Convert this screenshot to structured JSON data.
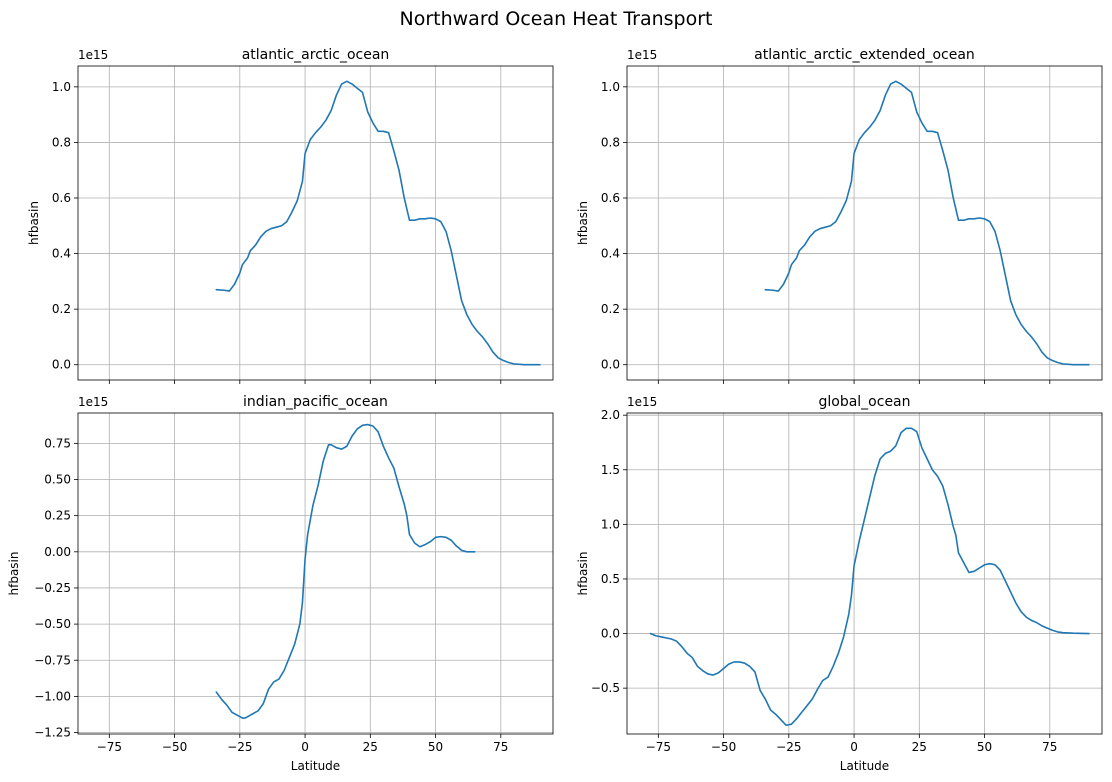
{
  "figure": {
    "title": "Northward Ocean Heat Transport"
  },
  "colors": {
    "series": "#1f77b4",
    "grid": "#b0b0b0",
    "axis": "#000000"
  },
  "chart_data": [
    {
      "type": "line",
      "title": "atlantic_arctic_ocean",
      "xlabel": "",
      "ylabel": "hfbasin",
      "offset_label": "1e15",
      "grid": true,
      "xlim": [
        -87,
        95
      ],
      "ylim": [
        -0.055,
        1.075
      ],
      "xticks": [
        -75,
        -50,
        -25,
        0,
        25,
        50,
        75
      ],
      "xticklabels": [
        "",
        "",
        "",
        "",
        "",
        "",
        ""
      ],
      "yticks": [
        0.0,
        0.2,
        0.4,
        0.6,
        0.8,
        1.0
      ],
      "yticklabels": [
        "0.0",
        "0.2",
        "0.4",
        "0.6",
        "0.8",
        "1.0"
      ],
      "series": [
        {
          "x": [
            -34,
            -31,
            -29,
            -27,
            -25,
            -24,
            -22,
            -21,
            -19,
            -17,
            -15,
            -13,
            -11,
            -9,
            -7,
            -5,
            -3,
            -1,
            0,
            2,
            4,
            6,
            8,
            10,
            12,
            14,
            16,
            18,
            20,
            22,
            24,
            26,
            28,
            30,
            32,
            34,
            36,
            38,
            39,
            40,
            42,
            44,
            46,
            48,
            50,
            52,
            54,
            56,
            58,
            60,
            62,
            64,
            66,
            68,
            70,
            72,
            74,
            76,
            78,
            80,
            84,
            90
          ],
          "y": [
            0.27,
            0.268,
            0.265,
            0.29,
            0.33,
            0.36,
            0.385,
            0.41,
            0.43,
            0.46,
            0.48,
            0.49,
            0.495,
            0.5,
            0.515,
            0.55,
            0.59,
            0.66,
            0.76,
            0.81,
            0.835,
            0.855,
            0.88,
            0.915,
            0.97,
            1.01,
            1.02,
            1.01,
            0.995,
            0.98,
            0.91,
            0.87,
            0.84,
            0.84,
            0.835,
            0.77,
            0.7,
            0.6,
            0.56,
            0.52,
            0.52,
            0.525,
            0.525,
            0.528,
            0.525,
            0.515,
            0.48,
            0.41,
            0.32,
            0.23,
            0.18,
            0.145,
            0.12,
            0.1,
            0.075,
            0.045,
            0.025,
            0.015,
            0.008,
            0.003,
            0.0,
            0.0
          ]
        }
      ]
    },
    {
      "type": "line",
      "title": "atlantic_arctic_extended_ocean",
      "xlabel": "",
      "ylabel": "hfbasin",
      "offset_label": "1e15",
      "grid": true,
      "xlim": [
        -87,
        95
      ],
      "ylim": [
        -0.055,
        1.075
      ],
      "xticks": [
        -75,
        -50,
        -25,
        0,
        25,
        50,
        75
      ],
      "xticklabels": [
        "",
        "",
        "",
        "",
        "",
        "",
        ""
      ],
      "yticks": [
        0.0,
        0.2,
        0.4,
        0.6,
        0.8,
        1.0
      ],
      "yticklabels": [
        "0.0",
        "0.2",
        "0.4",
        "0.6",
        "0.8",
        "1.0"
      ],
      "series": [
        {
          "x": [
            -34,
            -31,
            -29,
            -27,
            -25,
            -24,
            -22,
            -21,
            -19,
            -17,
            -15,
            -13,
            -11,
            -9,
            -7,
            -5,
            -3,
            -1,
            0,
            2,
            4,
            6,
            8,
            10,
            12,
            14,
            16,
            18,
            20,
            22,
            24,
            26,
            28,
            30,
            32,
            34,
            36,
            38,
            39,
            40,
            42,
            44,
            46,
            48,
            50,
            52,
            54,
            56,
            58,
            60,
            62,
            64,
            66,
            68,
            70,
            72,
            74,
            76,
            78,
            80,
            84,
            90
          ],
          "y": [
            0.27,
            0.268,
            0.265,
            0.29,
            0.33,
            0.36,
            0.385,
            0.41,
            0.43,
            0.46,
            0.48,
            0.49,
            0.495,
            0.5,
            0.515,
            0.55,
            0.59,
            0.66,
            0.76,
            0.81,
            0.835,
            0.855,
            0.88,
            0.915,
            0.97,
            1.01,
            1.02,
            1.01,
            0.995,
            0.98,
            0.91,
            0.87,
            0.84,
            0.84,
            0.835,
            0.77,
            0.7,
            0.6,
            0.56,
            0.52,
            0.52,
            0.525,
            0.525,
            0.528,
            0.525,
            0.515,
            0.48,
            0.41,
            0.32,
            0.23,
            0.18,
            0.145,
            0.12,
            0.1,
            0.075,
            0.045,
            0.025,
            0.015,
            0.008,
            0.003,
            0.0,
            0.0
          ]
        }
      ]
    },
    {
      "type": "line",
      "title": "indian_pacific_ocean",
      "xlabel": "Latitude",
      "ylabel": "hfbasin",
      "offset_label": "1e15",
      "grid": true,
      "xlim": [
        -87,
        95
      ],
      "ylim": [
        -1.26,
        0.96
      ],
      "xticks": [
        -75,
        -50,
        -25,
        0,
        25,
        50,
        75
      ],
      "xticklabels": [
        "−75",
        "−50",
        "−25",
        "0",
        "25",
        "50",
        "75"
      ],
      "yticks": [
        -1.25,
        -1.0,
        -0.75,
        -0.5,
        -0.25,
        0.0,
        0.25,
        0.5,
        0.75
      ],
      "yticklabels": [
        "−1.25",
        "−1.00",
        "−0.75",
        "−0.50",
        "−0.25",
        "0.00",
        "0.25",
        "0.50",
        "0.75"
      ],
      "series": [
        {
          "x": [
            -34,
            -32,
            -30,
            -28,
            -26,
            -24,
            -23,
            -22,
            -20,
            -18,
            -16,
            -14,
            -12,
            -10,
            -8,
            -6,
            -4,
            -2,
            -1,
            0,
            1,
            3,
            5,
            7,
            9,
            10,
            12,
            14,
            16,
            18,
            20,
            22,
            24,
            26,
            28,
            30,
            32,
            34,
            36,
            38,
            39,
            40,
            42,
            44,
            46,
            48,
            50,
            52,
            54,
            56,
            58,
            60,
            62,
            65
          ],
          "y": [
            -0.97,
            -1.02,
            -1.06,
            -1.11,
            -1.13,
            -1.15,
            -1.15,
            -1.14,
            -1.12,
            -1.1,
            -1.05,
            -0.95,
            -0.9,
            -0.88,
            -0.82,
            -0.73,
            -0.64,
            -0.5,
            -0.35,
            -0.05,
            0.12,
            0.32,
            0.46,
            0.63,
            0.74,
            0.74,
            0.72,
            0.71,
            0.73,
            0.8,
            0.85,
            0.875,
            0.88,
            0.87,
            0.83,
            0.73,
            0.65,
            0.58,
            0.45,
            0.33,
            0.25,
            0.12,
            0.06,
            0.035,
            0.05,
            0.07,
            0.1,
            0.105,
            0.1,
            0.08,
            0.04,
            0.01,
            0.0,
            0.0
          ]
        }
      ]
    },
    {
      "type": "line",
      "title": "global_ocean",
      "xlabel": "Latitude",
      "ylabel": "hfbasin",
      "offset_label": "1e15",
      "grid": true,
      "xlim": [
        -87,
        95
      ],
      "ylim": [
        -0.92,
        2.02
      ],
      "xticks": [
        -75,
        -50,
        -25,
        0,
        25,
        50,
        75
      ],
      "xticklabels": [
        "−75",
        "−50",
        "−25",
        "0",
        "25",
        "50",
        "75"
      ],
      "yticks": [
        -0.5,
        0.0,
        0.5,
        1.0,
        1.5,
        2.0
      ],
      "yticklabels": [
        "−0.5",
        "0.0",
        "0.5",
        "1.0",
        "1.5",
        "2.0"
      ],
      "series": [
        {
          "x": [
            -78,
            -76,
            -74,
            -70,
            -68,
            -66,
            -64,
            -62,
            -60,
            -58,
            -56,
            -54,
            -52,
            -50,
            -48,
            -46,
            -44,
            -42,
            -40,
            -38,
            -36,
            -34,
            -32,
            -30,
            -28,
            -26,
            -24,
            -22,
            -20,
            -18,
            -16,
            -14,
            -12,
            -10,
            -8,
            -6,
            -4,
            -2,
            -1,
            0,
            2,
            4,
            6,
            8,
            10,
            12,
            14,
            16,
            18,
            20,
            22,
            24,
            26,
            28,
            30,
            32,
            34,
            36,
            38,
            39,
            40,
            42,
            44,
            46,
            48,
            50,
            52,
            54,
            56,
            58,
            60,
            62,
            64,
            66,
            68,
            70,
            72,
            74,
            76,
            78,
            80,
            84,
            90
          ],
          "y": [
            0.0,
            -0.02,
            -0.03,
            -0.05,
            -0.07,
            -0.12,
            -0.18,
            -0.22,
            -0.3,
            -0.34,
            -0.37,
            -0.38,
            -0.36,
            -0.32,
            -0.28,
            -0.26,
            -0.26,
            -0.27,
            -0.3,
            -0.35,
            -0.52,
            -0.6,
            -0.7,
            -0.74,
            -0.79,
            -0.84,
            -0.83,
            -0.78,
            -0.72,
            -0.66,
            -0.6,
            -0.51,
            -0.43,
            -0.4,
            -0.3,
            -0.18,
            -0.03,
            0.18,
            0.35,
            0.62,
            0.85,
            1.05,
            1.25,
            1.45,
            1.6,
            1.65,
            1.67,
            1.72,
            1.84,
            1.88,
            1.88,
            1.85,
            1.7,
            1.6,
            1.5,
            1.44,
            1.35,
            1.18,
            0.98,
            0.9,
            0.74,
            0.65,
            0.56,
            0.57,
            0.6,
            0.63,
            0.64,
            0.63,
            0.58,
            0.48,
            0.38,
            0.28,
            0.2,
            0.15,
            0.12,
            0.1,
            0.07,
            0.05,
            0.03,
            0.015,
            0.008,
            0.003,
            0.0
          ]
        }
      ]
    }
  ]
}
